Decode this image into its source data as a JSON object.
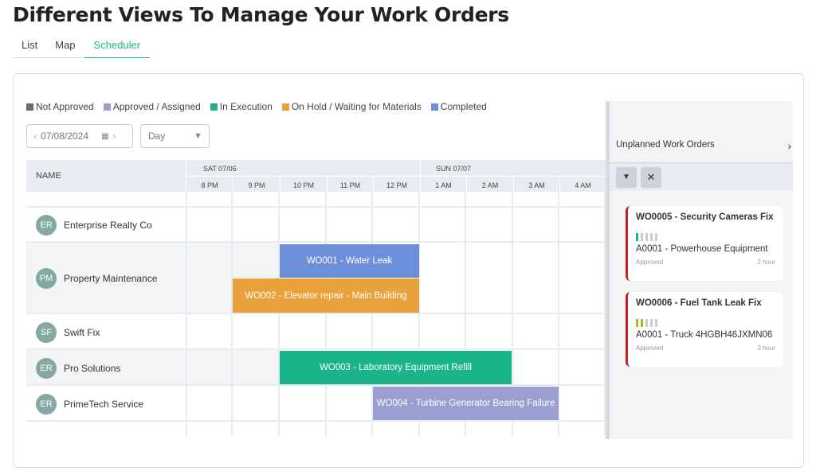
{
  "title": "Different Views To Manage Your Work Orders",
  "tabs": [
    {
      "label": "List"
    },
    {
      "label": "Map"
    },
    {
      "label": "Scheduler",
      "active": true
    }
  ],
  "legend": [
    {
      "label": "Not Approved",
      "color": "#6e6e6e"
    },
    {
      "label": "Approved / Assigned",
      "color": "#9b9fcf"
    },
    {
      "label": "In Execution",
      "color": "#1bb38a"
    },
    {
      "label": "On Hold / Waiting for Materials",
      "color": "#e9a23b"
    },
    {
      "label": "Completed",
      "color": "#6b8fd8"
    }
  ],
  "date_input": {
    "value": "07/08/2024"
  },
  "view_select": {
    "value": "Day"
  },
  "grid": {
    "name_header": "NAME",
    "days": [
      {
        "label": "SAT 07/06"
      },
      {
        "label": "SUN 07/07"
      }
    ],
    "hours": [
      "8 PM",
      "9 PM",
      "10 PM",
      "11 PM",
      "12 PM",
      "1 AM",
      "2 AM",
      "3 AM",
      "4 AM"
    ]
  },
  "resources": [
    {
      "initials": "ER",
      "name": "Enterprise Realty Co"
    },
    {
      "initials": "PM",
      "name": "Property Maintenance"
    },
    {
      "initials": "SF",
      "name": "Swift Fix"
    },
    {
      "initials": "ER",
      "name": "Pro Solutions"
    },
    {
      "initials": "ER",
      "name": "PrimeTech Service"
    }
  ],
  "events": [
    {
      "label": "WO001 - Water Leak",
      "color": "#6b8fd8"
    },
    {
      "label": "WO002 - Elevator repair - Main Building",
      "color": "#e9a23b"
    },
    {
      "label": "WO003 - Laboratory Equipment Refill",
      "color": "#1bb38a"
    },
    {
      "label": "WO004 - Turbine Generator Bearing Failure",
      "color": "#9b9fcf"
    }
  ],
  "unplanned": {
    "title": "Unplanned Work Orders",
    "items": [
      {
        "title": "WO0005 - Security Cameras Fix",
        "asset": "A0001 - Powerhouse Equipment",
        "status": "Approved",
        "duration": "2 hour",
        "priority": 1,
        "priority_color": "#1bb38a"
      },
      {
        "title": "WO0006 - Fuel Tank Leak Fix",
        "asset": "A0001 - Truck 4HGBH46JXMN06",
        "status": "Approved",
        "duration": "2 hour",
        "priority": 2,
        "priority_color": "#b8b020"
      }
    ]
  }
}
